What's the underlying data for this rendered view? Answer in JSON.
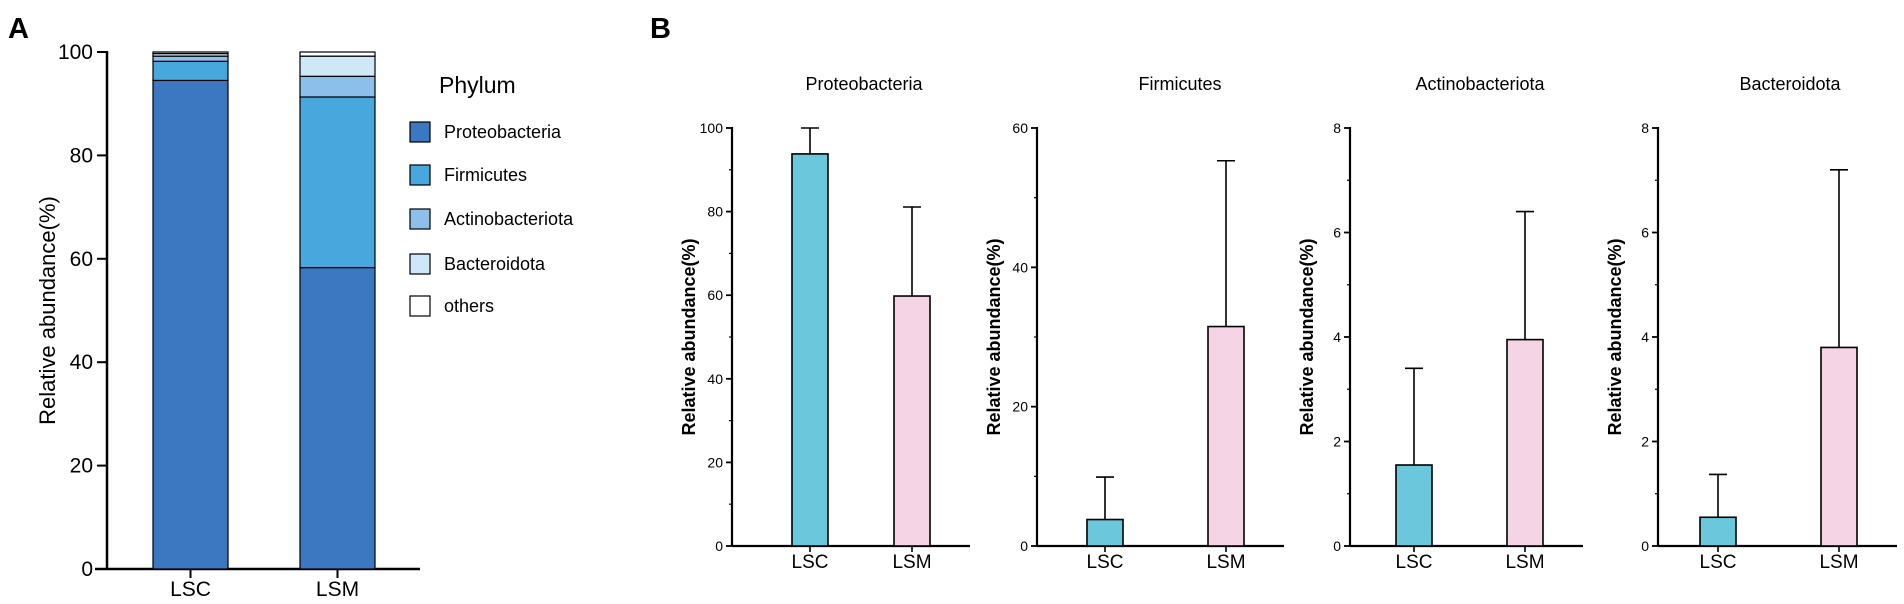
{
  "panels": {
    "a_label": "A",
    "b_label": "B"
  },
  "colors": {
    "Proteobacteria": "#3c78c1",
    "Firmicutes": "#48a7dc",
    "Actinobacteriota": "#8cc0ea",
    "Bacteroidota": "#cfe8f8",
    "others": "#ffffff",
    "LSC_bar": "#6bc7dc",
    "LSM_bar": "#f5d4e6"
  },
  "chart_data": [
    {
      "id": "stacked",
      "type": "bar",
      "stacked": true,
      "categories": [
        "LSC",
        "LSM"
      ],
      "series": [
        {
          "name": "Proteobacteria",
          "values": [
            94.5,
            58.3
          ]
        },
        {
          "name": "Firmicutes",
          "values": [
            3.7,
            33.0
          ]
        },
        {
          "name": "Actinobacteriota",
          "values": [
            1.0,
            4.0
          ]
        },
        {
          "name": "Bacteroidota",
          "values": [
            0.5,
            3.9
          ]
        },
        {
          "name": "others",
          "values": [
            0.3,
            0.8
          ]
        }
      ],
      "ylabel": "Relative abundance(%)",
      "xlabel": "",
      "ylim": [
        0,
        100
      ],
      "yticks": [
        0,
        20,
        40,
        60,
        80,
        100
      ],
      "legend": {
        "title": "Phylum",
        "entries": [
          "Proteobacteria",
          "Firmicutes",
          "Actinobacteriota",
          "Bacteroidota",
          "others"
        ],
        "placement": "right"
      }
    },
    {
      "id": "proteobacteria",
      "type": "bar",
      "title": "Proteobacteria",
      "categories": [
        "LSC",
        "LSM"
      ],
      "values": [
        93.8,
        59.8
      ],
      "errors": [
        6.2,
        21.3
      ],
      "ylabel": "Relative abundance(%)",
      "ylim": [
        0,
        100
      ],
      "yticks": [
        0,
        20,
        40,
        60,
        80,
        100
      ],
      "minor_step": 10
    },
    {
      "id": "firmicutes",
      "type": "bar",
      "title": "Firmicutes",
      "categories": [
        "LSC",
        "LSM"
      ],
      "values": [
        3.8,
        31.5
      ],
      "errors": [
        6.1,
        23.8
      ],
      "ylabel": "Relative abundance(%)",
      "ylim": [
        0,
        60
      ],
      "yticks": [
        0,
        20,
        40,
        60
      ],
      "minor_step": 10
    },
    {
      "id": "actinobacteriota",
      "type": "bar",
      "title": "Actinobacteriota",
      "categories": [
        "LSC",
        "LSM"
      ],
      "values": [
        1.55,
        3.95
      ],
      "errors": [
        1.85,
        2.45
      ],
      "ylabel": "Relative abundance(%)",
      "ylim": [
        0,
        8
      ],
      "yticks": [
        0,
        2,
        4,
        6,
        8
      ],
      "minor_step": 1
    },
    {
      "id": "bacteroidota",
      "type": "bar",
      "title": "Bacteroidota",
      "categories": [
        "LSC",
        "LSM"
      ],
      "values": [
        0.55,
        3.8
      ],
      "errors": [
        0.82,
        3.4
      ],
      "ylabel": "Relative abundance(%)",
      "ylim": [
        0,
        8
      ],
      "yticks": [
        0,
        2,
        4,
        6,
        8
      ],
      "minor_step": 1
    }
  ]
}
